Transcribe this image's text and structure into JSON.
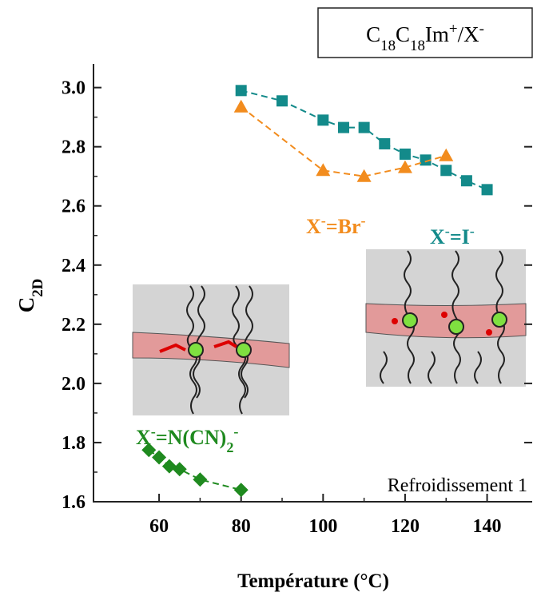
{
  "chart_data": {
    "type": "scatter",
    "title": [
      {
        "text": "C"
      },
      {
        "text": "18",
        "sub": true
      },
      {
        "text": "C"
      },
      {
        "text": "18",
        "sub": true
      },
      {
        "text": "Im"
      },
      {
        "text": "+",
        "sup": true
      },
      {
        "text": "/X"
      },
      {
        "text": "-",
        "sup": true
      }
    ],
    "ylabel": [
      {
        "text": "C"
      },
      {
        "text": "2D",
        "sub": true
      }
    ],
    "xlabel": "Température (°C)",
    "annotation": "Refroidissement 1",
    "xlim": [
      44,
      151
    ],
    "ylim": [
      1.6,
      3.08
    ],
    "xticks": [
      60,
      80,
      100,
      120,
      140
    ],
    "yticks": [
      {
        "value": 1.6,
        "label": "1.6"
      },
      {
        "value": 1.8,
        "label": "1.8"
      },
      {
        "value": 2.0,
        "label": "2.0"
      },
      {
        "value": 2.2,
        "label": "2.2"
      },
      {
        "value": 2.4,
        "label": "2.4"
      },
      {
        "value": 2.6,
        "label": "2.6"
      },
      {
        "value": 2.8,
        "label": "2.8"
      },
      {
        "value": 3.0,
        "label": "3.0"
      }
    ],
    "series": [
      {
        "label": [
          {
            "text": "X"
          },
          {
            "text": "-",
            "sup": true
          },
          {
            "text": "=I"
          },
          {
            "text": "-",
            "sup": true
          }
        ],
        "color": "#138a8a",
        "marker": "square",
        "x": [
          80,
          90,
          100,
          105,
          110,
          115,
          120,
          125,
          130,
          135,
          140
        ],
        "values": [
          2.99,
          2.955,
          2.89,
          2.865,
          2.865,
          2.81,
          2.775,
          2.755,
          2.72,
          2.685,
          2.655
        ]
      },
      {
        "label": [
          {
            "text": "X"
          },
          {
            "text": "-",
            "sup": true
          },
          {
            "text": "=Br"
          },
          {
            "text": "-",
            "sup": true
          }
        ],
        "color": "#f28c1e",
        "marker": "triangle",
        "x": [
          80,
          100,
          110,
          120,
          130
        ],
        "values": [
          2.935,
          2.72,
          2.7,
          2.73,
          2.77
        ]
      },
      {
        "label": [
          {
            "text": "X"
          },
          {
            "text": "-",
            "sup": true
          },
          {
            "text": "=N(CN)"
          },
          {
            "text": "2",
            "sub": true
          },
          {
            "text": "-",
            "sup": true
          }
        ],
        "color": "#1f8a1f",
        "marker": "diamond",
        "x": [
          57.5,
          60,
          62.5,
          65,
          70,
          80
        ],
        "values": [
          1.775,
          1.75,
          1.72,
          1.71,
          1.675,
          1.64
        ]
      }
    ]
  }
}
